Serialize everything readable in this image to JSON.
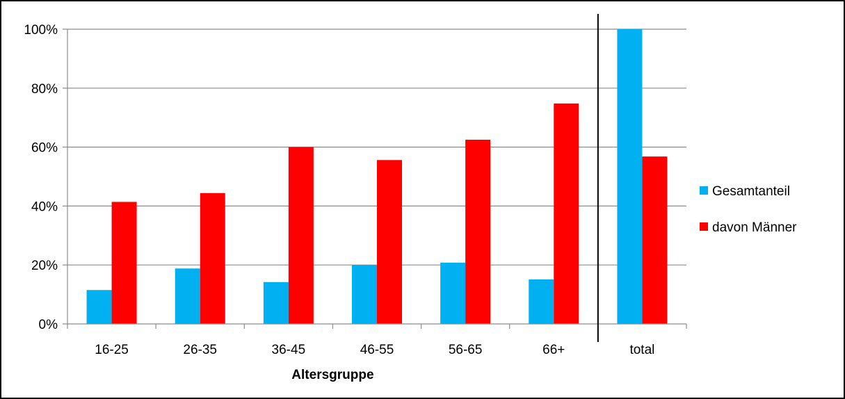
{
  "chart_data": {
    "type": "bar",
    "categories": [
      "16-25",
      "26-35",
      "36-45",
      "46-55",
      "56-65",
      "66+",
      "total"
    ],
    "series": [
      {
        "name": "Gesamtanteil",
        "color": "#00b0f0",
        "values": [
          11.5,
          18.8,
          14.2,
          20.0,
          20.8,
          15.1,
          100
        ]
      },
      {
        "name": "davon Männer",
        "color": "#ff0000",
        "values": [
          41.4,
          44.4,
          60.0,
          55.6,
          62.5,
          74.8,
          56.8
        ]
      }
    ],
    "xlabel": "Altersgruppe",
    "ylabel": "",
    "ylim": [
      0,
      100
    ],
    "yticks": [
      0,
      20,
      40,
      60,
      80,
      100
    ],
    "ytick_labels": [
      "0%",
      "20%",
      "40%",
      "60%",
      "80%",
      "100%"
    ],
    "grid": true,
    "legend_position": "right",
    "separator_before": "total"
  }
}
